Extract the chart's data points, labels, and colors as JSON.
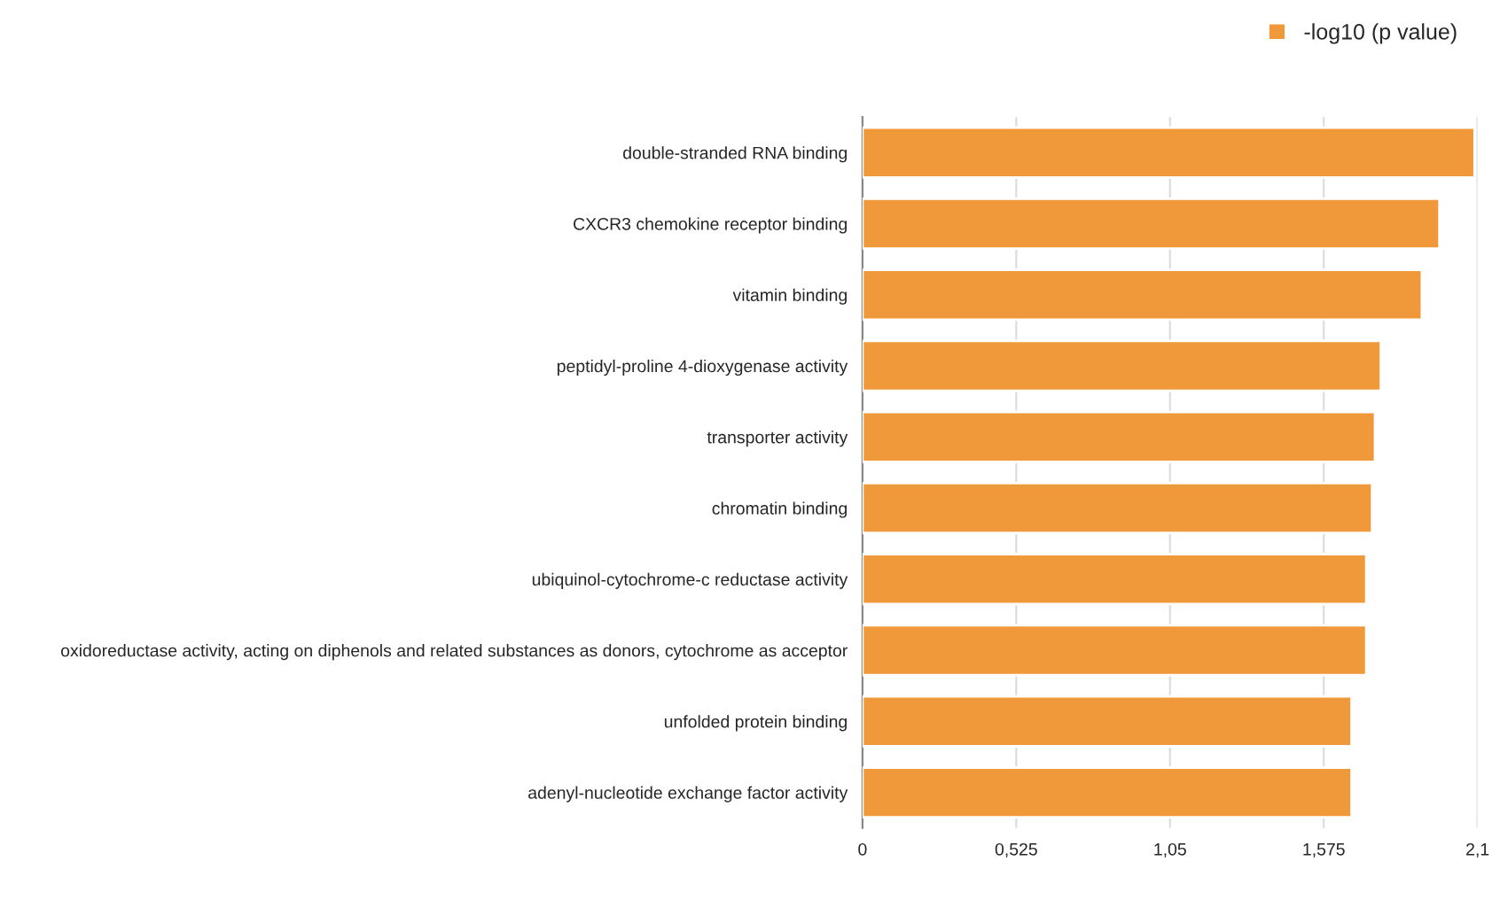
{
  "chart_data": {
    "type": "bar",
    "orientation": "horizontal",
    "categories": [
      "double-stranded RNA binding",
      "CXCR3 chemokine receptor binding",
      "vitamin binding",
      "peptidyl-proline 4-dioxygenase activity",
      "transporter activity",
      "chromatin binding",
      "ubiquinol-cytochrome-c reductase activity",
      "oxidoreductase activity, acting on diphenols and related substances as donors, cytochrome as acceptor",
      "unfolded protein binding",
      "adenyl-nucleotide exchange factor activity"
    ],
    "series": [
      {
        "name": "-log10 (p value)",
        "color": "#f0993a",
        "values": [
          2.09,
          1.97,
          1.91,
          1.77,
          1.75,
          1.74,
          1.72,
          1.72,
          1.67,
          1.67
        ]
      }
    ],
    "xlim": [
      0,
      2.1
    ],
    "xticks": [
      0,
      {
        "value": 0.525,
        "label": "0,525"
      },
      {
        "value": 1.05,
        "label": "1,05"
      },
      {
        "value": 1.575,
        "label": "1,575"
      },
      {
        "value": 2.1,
        "label": "2,1"
      }
    ],
    "grid": "x",
    "legend": "top right"
  }
}
